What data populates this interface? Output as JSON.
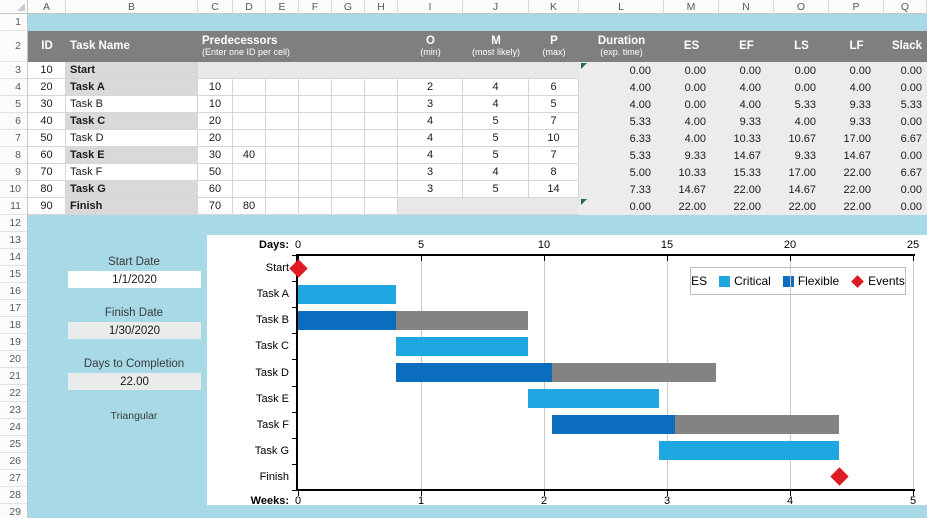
{
  "colors": {
    "page_bg": "#A8D9E6",
    "table_header_fill": "#7F7F7F",
    "critical_row_fill": "#D9D9D9",
    "calc_area_fill": "#ECECEC",
    "start_band_fill": "#E8E8E8",
    "critical": "#1EA7E1",
    "flexible": "#0B6DBD",
    "slack": "#838383",
    "event": "#DE1B22",
    "flag_green": "#1E7145"
  },
  "sheet": {
    "columns": [
      "A",
      "B",
      "C",
      "D",
      "E",
      "F",
      "G",
      "H",
      "I",
      "J",
      "K",
      "L",
      "M",
      "N",
      "O",
      "P",
      "Q"
    ],
    "visible_rows": 29,
    "header": {
      "id": "ID",
      "task_name": "Task Name",
      "predecessors": "Predecessors",
      "predecessors_sub": "(Enter one ID per cell)",
      "o": "O",
      "o_sub": "(min)",
      "m": "M",
      "m_sub": "(most likely)",
      "p": "P",
      "p_sub": "(max)",
      "duration": "Duration",
      "duration_sub": "(exp. time)",
      "es": "ES",
      "ef": "EF",
      "ls": "LS",
      "lf": "LF",
      "slack": "Slack"
    },
    "tasks": [
      {
        "id": "10",
        "name": "Start",
        "pred1": "",
        "pred2": "",
        "o": "",
        "m": "",
        "p": "",
        "duration": "0.00",
        "es": "0.00",
        "ef": "0.00",
        "ls": "0.00",
        "lf": "0.00",
        "slack": "0.00"
      },
      {
        "id": "20",
        "name": "Task A",
        "pred1": "10",
        "pred2": "",
        "o": "2",
        "m": "4",
        "p": "6",
        "duration": "4.00",
        "es": "0.00",
        "ef": "4.00",
        "ls": "0.00",
        "lf": "4.00",
        "slack": "0.00"
      },
      {
        "id": "30",
        "name": "Task B",
        "pred1": "10",
        "pred2": "",
        "o": "3",
        "m": "4",
        "p": "5",
        "duration": "4.00",
        "es": "0.00",
        "ef": "4.00",
        "ls": "5.33",
        "lf": "9.33",
        "slack": "5.33"
      },
      {
        "id": "40",
        "name": "Task C",
        "pred1": "20",
        "pred2": "",
        "o": "4",
        "m": "5",
        "p": "7",
        "duration": "5.33",
        "es": "4.00",
        "ef": "9.33",
        "ls": "4.00",
        "lf": "9.33",
        "slack": "0.00"
      },
      {
        "id": "50",
        "name": "Task D",
        "pred1": "20",
        "pred2": "",
        "o": "4",
        "m": "5",
        "p": "10",
        "duration": "6.33",
        "es": "4.00",
        "ef": "10.33",
        "ls": "10.67",
        "lf": "17.00",
        "slack": "6.67"
      },
      {
        "id": "60",
        "name": "Task E",
        "pred1": "30",
        "pred2": "40",
        "o": "4",
        "m": "5",
        "p": "7",
        "duration": "5.33",
        "es": "9.33",
        "ef": "14.67",
        "ls": "9.33",
        "lf": "14.67",
        "slack": "0.00"
      },
      {
        "id": "70",
        "name": "Task F",
        "pred1": "50",
        "pred2": "",
        "o": "3",
        "m": "4",
        "p": "8",
        "duration": "5.00",
        "es": "10.33",
        "ef": "15.33",
        "ls": "17.00",
        "lf": "22.00",
        "slack": "6.67"
      },
      {
        "id": "80",
        "name": "Task G",
        "pred1": "60",
        "pred2": "",
        "o": "3",
        "m": "5",
        "p": "14",
        "duration": "7.33",
        "es": "14.67",
        "ef": "22.00",
        "ls": "14.67",
        "lf": "22.00",
        "slack": "0.00"
      },
      {
        "id": "90",
        "name": "Finish",
        "pred1": "70",
        "pred2": "80",
        "o": "",
        "m": "",
        "p": "",
        "duration": "0.00",
        "es": "22.00",
        "ef": "22.00",
        "ls": "22.00",
        "lf": "22.00",
        "slack": "0.00"
      }
    ]
  },
  "panel": {
    "start_date_label": "Start Date",
    "start_date": "1/1/2020",
    "finish_date_label": "Finish Date",
    "finish_date": "1/30/2020",
    "days_label": "Days to Completion",
    "days_value": "22.00",
    "distribution": "Triangular"
  },
  "chart_data": {
    "type": "gantt",
    "days_axis": {
      "label": "Days:",
      "ticks": [
        0,
        5,
        10,
        15,
        20,
        25
      ],
      "max": 25
    },
    "weeks_axis": {
      "label": "Weeks:",
      "ticks": [
        0,
        1,
        2,
        3,
        4,
        5
      ],
      "max": 5
    },
    "legend": [
      "ES",
      "Critical",
      "Flexible",
      "Events"
    ],
    "rows": [
      {
        "name": "Start",
        "type": "milestone",
        "at": 0
      },
      {
        "name": "Task A",
        "type": "critical",
        "start": 0,
        "end": 4
      },
      {
        "name": "Task B",
        "type": "flexible",
        "start": 0,
        "end": 4,
        "slack_end": 9.33
      },
      {
        "name": "Task C",
        "type": "critical",
        "start": 4,
        "end": 9.33
      },
      {
        "name": "Task D",
        "type": "flexible",
        "start": 4,
        "end": 10.33,
        "slack_end": 17
      },
      {
        "name": "Task E",
        "type": "critical",
        "start": 9.33,
        "end": 14.67
      },
      {
        "name": "Task F",
        "type": "flexible",
        "start": 10.33,
        "end": 15.33,
        "slack_end": 22
      },
      {
        "name": "Task G",
        "type": "critical",
        "start": 14.67,
        "end": 22
      },
      {
        "name": "Finish",
        "type": "milestone",
        "at": 22
      }
    ]
  }
}
